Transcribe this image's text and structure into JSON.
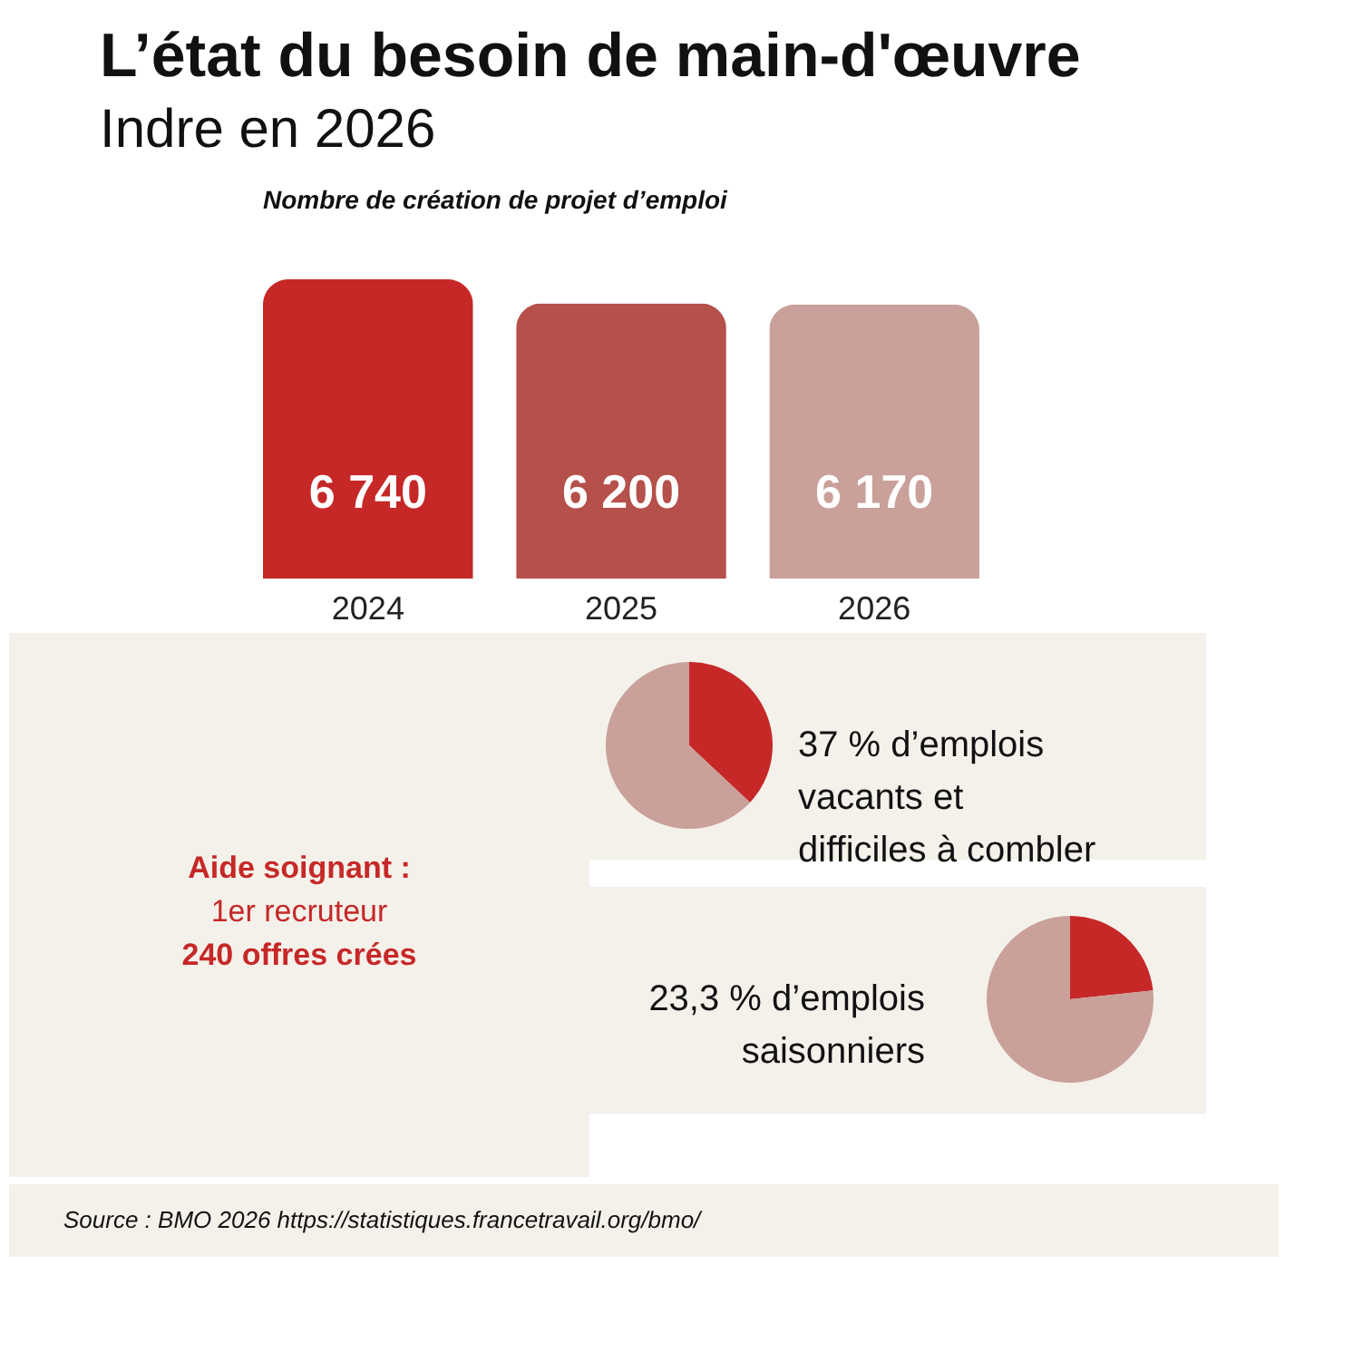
{
  "chart_data": [
    {
      "type": "other",
      "title": "L’état du besoin de main-d'œuvre",
      "subtitle": "Indre en 2026"
    },
    {
      "type": "bar",
      "title": "Nombre de création de projet d’emploi",
      "categories": [
        "2024",
        "2025",
        "2026"
      ],
      "values": [
        6740,
        6200,
        6170
      ],
      "colors": [
        "#c62828",
        "#b5504a",
        "#c9a09a"
      ],
      "data_labels": true
    },
    {
      "type": "other",
      "annotations": [
        "Aide soignant :",
        "1er recruteur",
        "240 offres crées"
      ]
    },
    {
      "type": "pie",
      "categories": [
        null,
        null
      ],
      "values": [
        37,
        63
      ],
      "colors": [
        "#c62828",
        "#c9a09a"
      ],
      "annotations": [
        "37 % d’emplois vacants et difficiles à combler"
      ]
    },
    {
      "type": "pie",
      "categories": [
        null,
        null
      ],
      "values": [
        23.3,
        76.7
      ],
      "colors": [
        "#c62828",
        "#c9a09a"
      ],
      "annotations": [
        "23,3 % d’emplois saisonniers"
      ]
    },
    {
      "type": "other",
      "annotations": [
        "Source : BMO 2026  https://statistiques.francetravail.org/bmo/"
      ]
    }
  ]
}
